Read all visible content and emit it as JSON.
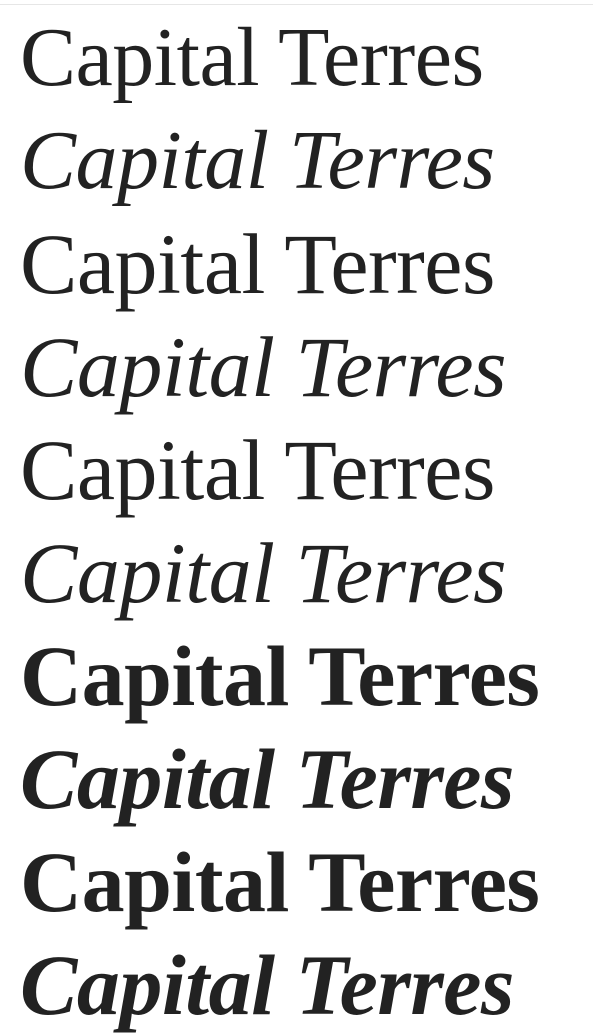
{
  "specimen": {
    "lines": [
      {
        "text": "Capital Terres",
        "style": "light"
      },
      {
        "text": "Capital Terres",
        "style": "light-italic"
      },
      {
        "text": "Capital Terres",
        "style": "regular"
      },
      {
        "text": "Capital Terres",
        "style": "italic"
      },
      {
        "text": "Capital Terres",
        "style": "medium"
      },
      {
        "text": "Capital Terres",
        "style": "medium-italic"
      },
      {
        "text": "Capital Terres",
        "style": "semibold"
      },
      {
        "text": "Capital Terres",
        "style": "semibold-italic"
      },
      {
        "text": "Capital Terres",
        "style": "bold"
      },
      {
        "text": "Capital Terres",
        "style": "bold-italic"
      }
    ]
  },
  "colors": {
    "text": "#222222",
    "background": "#ffffff"
  }
}
